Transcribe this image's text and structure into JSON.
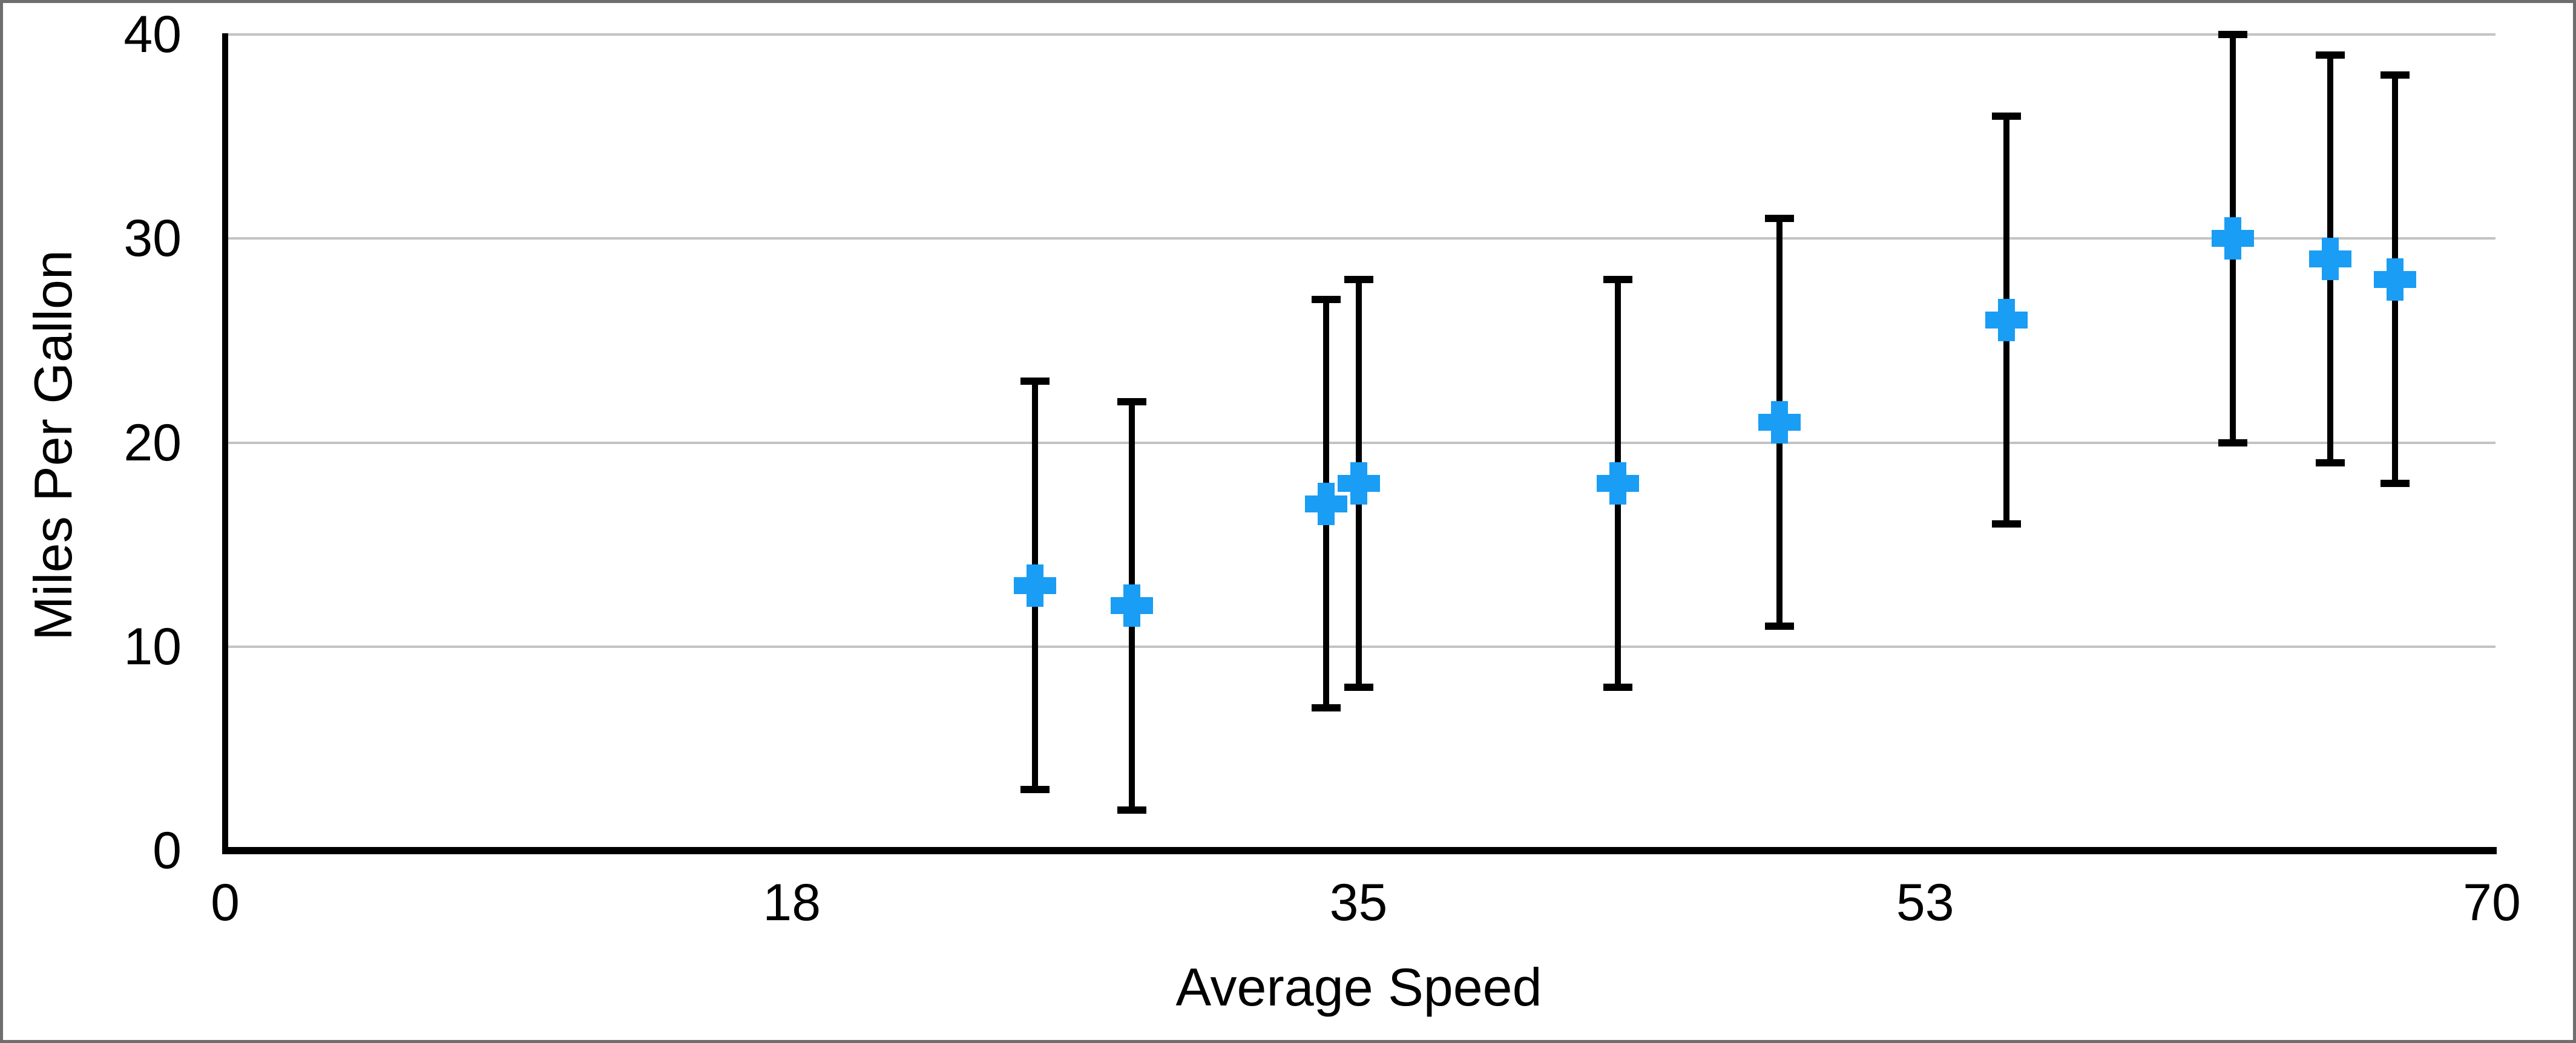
{
  "frame": {
    "border_color": "#6E6E6E",
    "background_color": "#FFFFFF"
  },
  "chart_data": {
    "type": "scatter",
    "title": "",
    "xlabel": "Average Speed",
    "ylabel": "Miles Per Gallon",
    "xlim": [
      0,
      70
    ],
    "ylim": [
      0,
      40
    ],
    "grid": true,
    "legend_position": "none",
    "xticks": [
      {
        "value": 0,
        "label": "0"
      },
      {
        "value": 17.5,
        "label": "18"
      },
      {
        "value": 35,
        "label": "35"
      },
      {
        "value": 52.5,
        "label": "53"
      },
      {
        "value": 70,
        "label": "70"
      }
    ],
    "yticks": [
      {
        "value": 0,
        "label": "0"
      },
      {
        "value": 10,
        "label": "10"
      },
      {
        "value": 20,
        "label": "20"
      },
      {
        "value": 30,
        "label": "30"
      },
      {
        "value": 40,
        "label": "40"
      }
    ],
    "marker": {
      "shape": "plus",
      "color": "#1A9DF4"
    },
    "error_bars": {
      "axis": "y",
      "symmetric": true,
      "color": "#000000"
    },
    "series": [
      {
        "name": "Miles Per Gallon",
        "points": [
          {
            "x": 25,
            "y": 13,
            "error": 10
          },
          {
            "x": 28,
            "y": 12,
            "error": 10
          },
          {
            "x": 34,
            "y": 17,
            "error": 10
          },
          {
            "x": 35,
            "y": 18,
            "error": 10
          },
          {
            "x": 43,
            "y": 18,
            "error": 10
          },
          {
            "x": 48,
            "y": 21,
            "error": 10
          },
          {
            "x": 55,
            "y": 26,
            "error": 10
          },
          {
            "x": 62,
            "y": 30,
            "error": 10
          },
          {
            "x": 65,
            "y": 29,
            "error": 10
          },
          {
            "x": 67,
            "y": 28,
            "error": 10
          }
        ]
      }
    ],
    "colors": {
      "gridline": "#C3C3C3",
      "axis": "#000000",
      "text": "#000000",
      "marker": "#1A9DF4",
      "error_bar": "#000000"
    }
  }
}
